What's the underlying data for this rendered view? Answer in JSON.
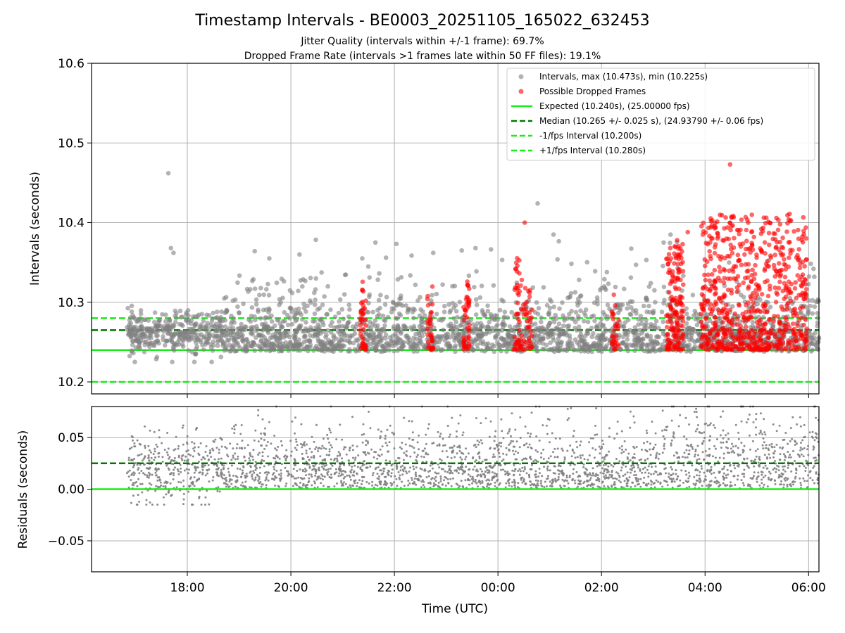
{
  "figure": {
    "title": "Timestamp Intervals - BE0003_20251105_165022_632453",
    "subtitle_1": "Jitter Quality (intervals within +/-1 frame): 69.7%",
    "subtitle_2": "Dropped Frame Rate (intervals >1 frames late within 50 FF files): 19.1%"
  },
  "colors": {
    "intervals": "#808080",
    "dropped": "#ff0000",
    "expected": "#1aeb1a",
    "median": "#007800",
    "fps_bounds": "#1aeb1a",
    "grid": "#b0b0b0"
  },
  "chart_data": [
    {
      "type": "scatter",
      "name": "intervals-panel",
      "ylabel": "Intervals (seconds)",
      "ylim": [
        10.185,
        10.6
      ],
      "yticks": [
        10.2,
        10.3,
        10.4,
        10.5,
        10.6
      ],
      "ytick_labels": [
        "10.2",
        "10.3",
        "10.4",
        "10.5",
        "10.6"
      ],
      "xlim_hours_utc": [
        "16:09",
        "06:12"
      ],
      "grid": true,
      "legend_position": "top-right",
      "series": [
        {
          "name": "Intervals, max (10.473s), min (10.225s)",
          "marker": "circle",
          "color": "#808080",
          "approx_points": 4000,
          "time_range": [
            "16:50",
            "06:12"
          ],
          "value_min": 10.225,
          "value_max": 10.473,
          "dense_band": [
            10.235,
            10.28
          ],
          "outliers": [
            {
              "time": "17:38",
              "value": 10.462
            },
            {
              "time": "00:46",
              "value": 10.424
            },
            {
              "time": "17:41",
              "value": 10.368
            },
            {
              "time": "17:44",
              "value": 10.362
            },
            {
              "time": "21:38",
              "value": 10.375
            },
            {
              "time": "22:45",
              "value": 10.362
            },
            {
              "time": "23:18",
              "value": 10.365
            },
            {
              "time": "23:34",
              "value": 10.368
            },
            {
              "time": "20:10",
              "value": 10.36
            },
            {
              "time": "03:20",
              "value": 10.385
            },
            {
              "time": "03:12",
              "value": 10.375
            },
            {
              "time": "02:52",
              "value": 10.353
            },
            {
              "time": "02:40",
              "value": 10.347
            },
            {
              "time": "19:35",
              "value": 10.355
            }
          ]
        },
        {
          "name": "Possible Dropped Frames",
          "marker": "circle",
          "color": "#ff0000",
          "clusters": [
            {
              "start": "21:20",
              "end": "21:27",
              "value_min": 10.24,
              "value_max": 10.34,
              "count": 40
            },
            {
              "start": "22:38",
              "end": "22:45",
              "value_min": 10.24,
              "value_max": 10.32,
              "count": 35
            },
            {
              "start": "23:20",
              "end": "23:27",
              "value_min": 10.24,
              "value_max": 10.33,
              "count": 45
            },
            {
              "start": "00:18",
              "end": "00:25",
              "value_min": 10.24,
              "value_max": 10.36,
              "count": 35
            },
            {
              "start": "00:25",
              "end": "00:40",
              "value_min": 10.24,
              "value_max": 10.33,
              "count": 50
            },
            {
              "start": "02:12",
              "end": "02:20",
              "value_min": 10.24,
              "value_max": 10.31,
              "count": 30
            },
            {
              "start": "03:15",
              "end": "03:35",
              "value_min": 10.24,
              "value_max": 10.38,
              "count": 160
            },
            {
              "start": "03:55",
              "end": "05:58",
              "value_min": 10.24,
              "value_max": 10.41,
              "count": 700
            }
          ],
          "outliers": [
            {
              "time": "00:31",
              "value": 10.4
            },
            {
              "time": "04:29",
              "value": 10.473
            },
            {
              "time": "05:11",
              "value": 10.406
            },
            {
              "time": "05:38",
              "value": 10.411
            },
            {
              "time": "03:40",
              "value": 10.388
            }
          ]
        },
        {
          "name": "Expected (10.240s), (25.00000 fps)",
          "type": "hline",
          "value": 10.24,
          "color": "#1aeb1a",
          "style": "solid"
        },
        {
          "name": "Median (10.265 +/- 0.025 s), (24.93790 +/- 0.06 fps)",
          "type": "hline",
          "value": 10.265,
          "color": "#007800",
          "style": "dashed"
        },
        {
          "name": "-1/fps Interval (10.200s)",
          "type": "hline",
          "value": 10.2,
          "color": "#1aeb1a",
          "style": "dashed"
        },
        {
          "name": "+1/fps Interval (10.280s)",
          "type": "hline",
          "value": 10.28,
          "color": "#1aeb1a",
          "style": "dashed"
        }
      ]
    },
    {
      "type": "scatter",
      "name": "residuals-panel",
      "xlabel": "Time (UTC)",
      "ylabel": "Residuals (seconds)",
      "ylim": [
        -0.08,
        0.08
      ],
      "yticks": [
        0.05,
        0.0,
        -0.05
      ],
      "ytick_labels": [
        "0.05",
        "0.00",
        "−0.05"
      ],
      "xticks": [
        "18:00",
        "20:00",
        "22:00",
        "00:00",
        "02:00",
        "04:00",
        "06:00"
      ],
      "xtick_labels": [
        "18:00",
        "20:00",
        "22:00",
        "00:00",
        "02:00",
        "04:00",
        "06:00"
      ],
      "grid": true,
      "series": [
        {
          "name": "residuals",
          "marker": "dot",
          "color": "#808080",
          "approx_points": 3000,
          "time_range": [
            "16:50",
            "06:12"
          ],
          "value_min": -0.015,
          "value_max": 0.08,
          "dense_band": [
            0.0,
            0.045
          ]
        },
        {
          "type": "hline",
          "value": 0.0,
          "color": "#1aeb1a",
          "style": "solid"
        },
        {
          "type": "hline",
          "value": 0.025,
          "color": "#007800",
          "style": "dashed"
        }
      ]
    }
  ]
}
